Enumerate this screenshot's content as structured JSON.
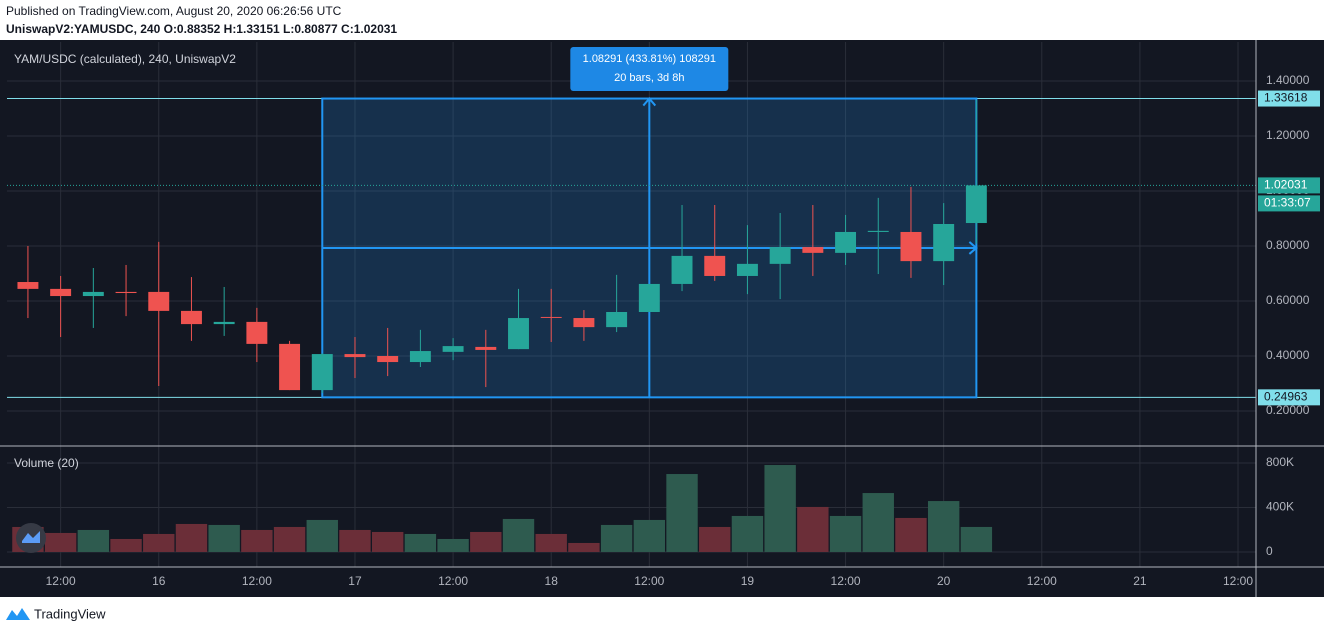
{
  "header": {
    "published": "Published on TradingView.com, August 20, 2020 06:26:56 UTC",
    "symbol": "UniswapV2:YAMUSDC, 240 O:0.88352 H:1.33151 L:0.80877 C:1.02031"
  },
  "chart_data": [
    {
      "type": "candlestick",
      "title": "YAM/USDC (calculated), 240, UniswapV2",
      "open": [
        0.669,
        0.644,
        0.618,
        0.633,
        0.633,
        0.564,
        0.516,
        0.524,
        0.444,
        0.276,
        0.407,
        0.4,
        0.378,
        0.415,
        0.433,
        0.425,
        0.542,
        0.538,
        0.505,
        0.56,
        0.662,
        0.764,
        0.691,
        0.735,
        0.796,
        0.775,
        0.851,
        0.851,
        0.745,
        0.88352
      ],
      "high": [
        0.8,
        0.691,
        0.72,
        0.731,
        0.815,
        0.687,
        0.651,
        0.575,
        0.455,
        0.41,
        0.469,
        0.502,
        0.495,
        0.465,
        0.495,
        0.644,
        0.644,
        0.567,
        0.695,
        0.662,
        0.949,
        0.949,
        0.876,
        0.92,
        0.949,
        0.913,
        0.975,
        1.015,
        0.956,
        1.33151
      ],
      "low": [
        0.538,
        0.469,
        0.502,
        0.545,
        0.291,
        0.455,
        0.473,
        0.378,
        0.276,
        0.265,
        0.32,
        0.327,
        0.36,
        0.385,
        0.287,
        0.425,
        0.451,
        0.455,
        0.487,
        0.56,
        0.636,
        0.673,
        0.625,
        0.607,
        0.691,
        0.731,
        0.698,
        0.684,
        0.658,
        0.80877
      ],
      "close": [
        0.644,
        0.618,
        0.633,
        0.629,
        0.564,
        0.516,
        0.524,
        0.444,
        0.276,
        0.407,
        0.396,
        0.378,
        0.418,
        0.436,
        0.422,
        0.538,
        0.54,
        0.505,
        0.56,
        0.662,
        0.764,
        0.691,
        0.735,
        0.796,
        0.775,
        0.851,
        0.855,
        0.745,
        0.88,
        1.02031
      ],
      "up_color": "#26a69a",
      "down_color": "#ef5350",
      "xlim": [
        -0.64,
        37.55
      ],
      "xticks": [
        {
          "value": 1,
          "label": "12:00"
        },
        {
          "value": 4,
          "label": "16"
        },
        {
          "value": 7,
          "label": "12:00"
        },
        {
          "value": 10,
          "label": "17"
        },
        {
          "value": 13,
          "label": "12:00"
        },
        {
          "value": 16,
          "label": "18"
        },
        {
          "value": 19,
          "label": "12:00"
        },
        {
          "value": 22,
          "label": "19"
        },
        {
          "value": 25,
          "label": "12:00"
        },
        {
          "value": 28,
          "label": "20"
        },
        {
          "value": 31,
          "label": "12:00"
        },
        {
          "value": 34,
          "label": "21"
        },
        {
          "value": 37,
          "label": "12:00"
        }
      ],
      "ylim": [
        0.0727,
        1.5418
      ],
      "yticks": [
        {
          "value": 0.2,
          "label": "0.20000"
        },
        {
          "value": 0.4,
          "label": "0.40000"
        },
        {
          "value": 0.6,
          "label": "0.60000"
        },
        {
          "value": 0.8,
          "label": "0.80000"
        },
        {
          "value": 1.0,
          "label": "1.00000"
        },
        {
          "value": 1.2,
          "label": "1.20000"
        },
        {
          "value": 1.4,
          "label": "1.40000"
        }
      ],
      "grid": true,
      "last_price": 1.02031,
      "countdown": "01:33:07",
      "measure": {
        "x": [
          9,
          29
        ],
        "y": [
          0.24963,
          1.33618
        ],
        "color": "#2196f3",
        "text": [
          "1.08291 (433.81%) 108291",
          "20 bars, 3d 8h"
        ]
      }
    },
    {
      "type": "bar",
      "title": "Volume (20)",
      "values": [
        225000,
        171000,
        198000,
        117000,
        162000,
        252000,
        243000,
        198000,
        225000,
        288000,
        198000,
        180000,
        162000,
        117000,
        180000,
        297000,
        162000,
        81000,
        243000,
        288000,
        701000,
        225000,
        324000,
        782000,
        405000,
        324000,
        530000,
        306000,
        458000,
        225000
      ],
      "up_color": "#2e5b4f",
      "down_color": "#6b2e38",
      "ylim": [
        -135000,
        953000
      ],
      "yticks": [
        0,
        {
          "value": 400000,
          "label": "400K"
        },
        {
          "value": 800000,
          "label": "800K"
        }
      ]
    }
  ],
  "footer": {
    "brand": "TradingView"
  }
}
